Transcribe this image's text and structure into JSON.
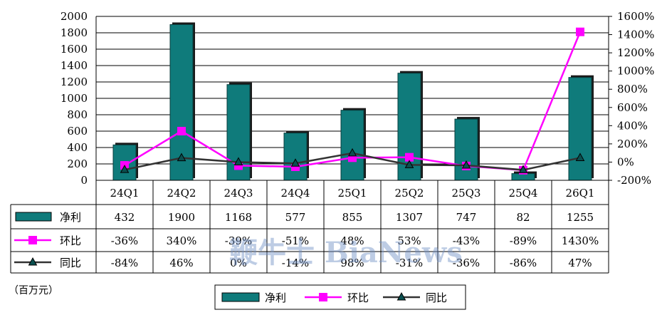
{
  "chart_data": {
    "type": "bar",
    "categories": [
      "24Q1",
      "24Q2",
      "24Q3",
      "24Q4",
      "25Q1",
      "25Q2",
      "25Q3",
      "25Q4",
      "26Q1"
    ],
    "series": [
      {
        "name": "净利",
        "kind": "bar",
        "axis": "left",
        "color": "#0f7b7b",
        "values": [
          432,
          1900,
          1168,
          577,
          855,
          1307,
          747,
          82,
          1255
        ],
        "labels": [
          "432",
          "1900",
          "1168",
          "577",
          "855",
          "1307",
          "747",
          "82",
          "1255"
        ]
      },
      {
        "name": "环比",
        "kind": "line",
        "axis": "right",
        "color": "#ff00ff",
        "marker": "square",
        "values": [
          -36,
          340,
          -39,
          -51,
          48,
          53,
          -43,
          -89,
          1430
        ],
        "labels": [
          "-36%",
          "340%",
          "-39%",
          "-51%",
          "48%",
          "53%",
          "-43%",
          "-89%",
          "1430%"
        ]
      },
      {
        "name": "同比",
        "kind": "line",
        "axis": "right",
        "color": "#333333",
        "marker": "triangle",
        "values": [
          -84,
          46,
          0,
          -14,
          98,
          -31,
          -36,
          -86,
          47
        ],
        "labels": [
          "-84%",
          "46%",
          "0%",
          "-14%",
          "98%",
          "-31%",
          "-36%",
          "-86%",
          "47%"
        ]
      }
    ],
    "ylim": [
      0,
      2000
    ],
    "y_ticks": [
      "0",
      "200",
      "400",
      "600",
      "800",
      "1000",
      "1200",
      "1400",
      "1600",
      "1800",
      "2000"
    ],
    "y2lim": [
      -200,
      1600
    ],
    "y2_ticks": [
      "-200%",
      "0%",
      "200%",
      "400%",
      "600%",
      "800%",
      "1000%",
      "1200%",
      "1400%",
      "1600%"
    ],
    "unit": "（百万元）",
    "legend": [
      "净利",
      "环比",
      "同比"
    ],
    "legend_position": "bottom",
    "grid": true,
    "data_table": true
  },
  "watermark": "鞭牛士 BiaNews",
  "colors": {
    "bar_fill": "#0f7b7b",
    "qoq": "#ff00ff",
    "yoy_line": "#333333",
    "yoy_marker": "#0a4f4f"
  }
}
